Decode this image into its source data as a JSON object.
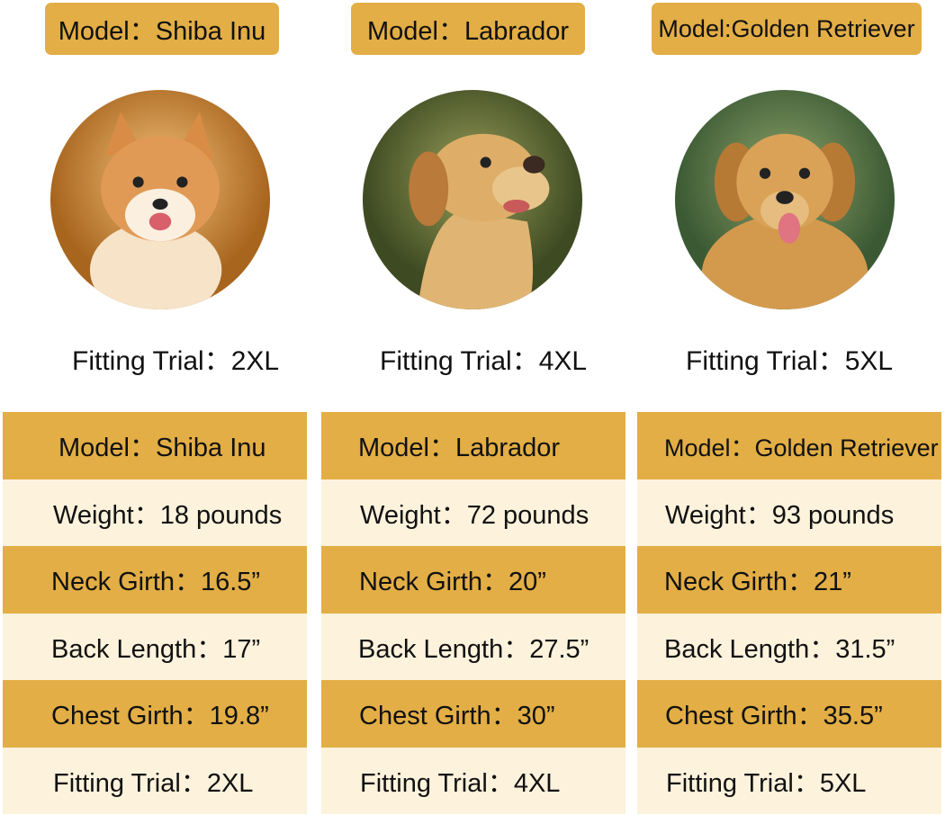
{
  "colors": {
    "gold": "#e2ae45",
    "cream": "#fdf2dc"
  },
  "dogs": [
    {
      "tag": "Model：Shiba Inu",
      "photo": "shiba-inu-photo",
      "fit": "Fitting Trial：2XL",
      "rows": [
        "Model：Shiba Inu",
        "Weight：18 pounds",
        "Neck Girth：16.5”",
        "Back Length：17”",
        "Chest Girth：19.8”",
        "Fitting Trial：2XL"
      ]
    },
    {
      "tag": "Model：Labrador",
      "photo": "labrador-photo",
      "fit": "Fitting Trial：4XL",
      "rows": [
        "Model：Labrador",
        "Weight：72 pounds",
        "Neck Girth：20”",
        "Back Length：27.5”",
        "Chest Girth：30”",
        "Fitting Trial：4XL"
      ]
    },
    {
      "tag": "Model:Golden Retriever",
      "photo": "golden-retriever-photo",
      "fit": "Fitting Trial：5XL",
      "rows": [
        "Model：Golden Retriever",
        "Weight：93 pounds",
        "Neck Girth：21”",
        "Back Length：31.5”",
        "Chest Girth：35.5”",
        "Fitting Trial：5XL"
      ]
    }
  ]
}
